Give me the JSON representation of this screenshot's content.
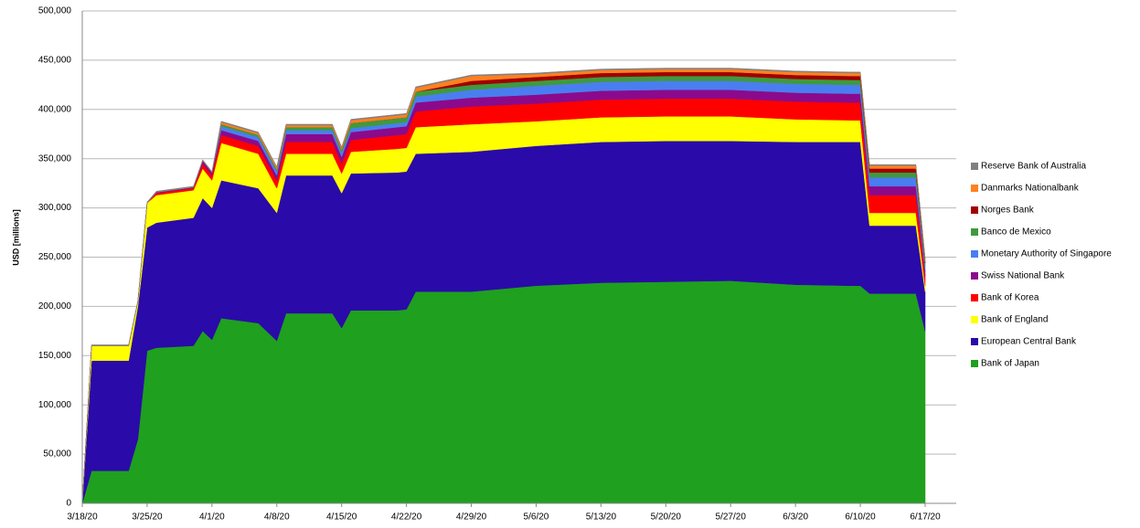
{
  "chart_data": {
    "type": "stacked-area",
    "y_label": "USD [millions]",
    "x": [
      "3/18/20",
      "3/19/20",
      "3/23/20",
      "3/24/20",
      "3/25/20",
      "3/26/20",
      "3/30/20",
      "3/31/20",
      "4/1/20",
      "4/2/20",
      "4/6/20",
      "4/8/20",
      "4/9/20",
      "4/14/20",
      "4/15/20",
      "4/16/20",
      "4/21/20",
      "4/22/20",
      "4/23/20",
      "4/29/20",
      "5/6/20",
      "5/13/20",
      "5/20/20",
      "5/27/20",
      "6/3/20",
      "6/9/20",
      "6/10/20",
      "6/11/20",
      "6/16/20",
      "6/17/20"
    ],
    "xlim": [
      "3/18/20",
      "6/17/20"
    ],
    "xticks": [
      "3/18/20",
      "3/25/20",
      "4/1/20",
      "4/8/20",
      "4/15/20",
      "4/22/20",
      "4/29/20",
      "5/6/20",
      "5/13/20",
      "5/20/20",
      "5/27/20",
      "6/3/20",
      "6/10/20",
      "6/17/20"
    ],
    "ylim": [
      0,
      500000
    ],
    "yticks": [
      0,
      {
        "value": 50000,
        "label": "50,000"
      },
      {
        "value": 100000,
        "label": "100,000"
      },
      {
        "value": 150000,
        "label": "150,000"
      },
      {
        "value": 200000,
        "label": "200,000"
      },
      {
        "value": 250000,
        "label": "250,000"
      },
      {
        "value": 300000,
        "label": "300,000"
      },
      {
        "value": 350000,
        "label": "350,000"
      },
      {
        "value": 400000,
        "label": "400,000"
      },
      {
        "value": 450000,
        "label": "450,000"
      },
      {
        "value": 500000,
        "label": "500,000"
      }
    ],
    "grid": true,
    "legend": "right",
    "series": [
      {
        "name": "Bank of Japan",
        "color": "#1fa01f",
        "values": [
          0,
          33000,
          33000,
          65000,
          155000,
          158000,
          160000,
          175000,
          166000,
          188000,
          183000,
          165000,
          193000,
          193000,
          178000,
          196000,
          196000,
          197000,
          215000,
          215000,
          221000,
          224000,
          225000,
          226000,
          222000,
          221000,
          221000,
          213000,
          213000,
          175000
        ]
      },
      {
        "name": "European Central Bank",
        "color": "#2a0aa8",
        "values": [
          0,
          112000,
          112000,
          135000,
          125000,
          127000,
          130000,
          135000,
          134000,
          140000,
          137000,
          130000,
          140000,
          140000,
          137000,
          139000,
          140000,
          140000,
          140000,
          142000,
          142000,
          143000,
          143000,
          142000,
          145000,
          146000,
          146000,
          69000,
          69000,
          40000
        ]
      },
      {
        "name": "Bank of England",
        "color": "#ffff00",
        "values": [
          0,
          15000,
          15000,
          5000,
          25000,
          28000,
          28000,
          30000,
          28000,
          38000,
          35000,
          25000,
          22000,
          22000,
          20000,
          22000,
          24000,
          24000,
          27000,
          28000,
          25000,
          25000,
          25000,
          25000,
          23000,
          22000,
          22000,
          13000,
          13000,
          6000
        ]
      },
      {
        "name": "Bank of Korea",
        "color": "#ff0000",
        "values": [
          0,
          0,
          0,
          0,
          0,
          2000,
          2000,
          5000,
          5000,
          8000,
          8000,
          8000,
          12000,
          12000,
          10000,
          12000,
          14000,
          14000,
          16000,
          18000,
          18000,
          18000,
          18000,
          18000,
          18000,
          18000,
          18000,
          18000,
          18000,
          10000
        ]
      },
      {
        "name": "Swiss National Bank",
        "color": "#8b0a8b",
        "values": [
          0,
          0,
          0,
          0,
          0,
          1000,
          1000,
          3000,
          3000,
          5000,
          5000,
          5000,
          8000,
          8000,
          7000,
          8000,
          8000,
          8000,
          9000,
          9000,
          9000,
          9000,
          9000,
          9000,
          9000,
          9000,
          9000,
          9000,
          9000,
          5000
        ]
      },
      {
        "name": "Monetary Authority of Singapore",
        "color": "#4a7ef0",
        "values": [
          0,
          0,
          0,
          0,
          0,
          0,
          0,
          0,
          0,
          4000,
          4000,
          4000,
          4000,
          4000,
          4000,
          4000,
          4000,
          4000,
          6000,
          8000,
          9000,
          9000,
          9000,
          9000,
          9000,
          9000,
          9000,
          9000,
          9000,
          5000
        ]
      },
      {
        "name": "Banco de Mexico",
        "color": "#3f9a3f",
        "values": [
          0,
          0,
          0,
          0,
          0,
          0,
          0,
          0,
          0,
          2000,
          2000,
          2000,
          3000,
          3000,
          3000,
          5000,
          5000,
          5000,
          5000,
          5000,
          5000,
          5000,
          5000,
          5000,
          5000,
          5000,
          5000,
          5000,
          5000,
          3000
        ]
      },
      {
        "name": "Norges Bank",
        "color": "#a00000",
        "values": [
          0,
          0,
          0,
          0,
          0,
          0,
          0,
          0,
          0,
          0,
          0,
          0,
          0,
          0,
          0,
          0,
          0,
          0,
          0,
          4000,
          4000,
          4000,
          4000,
          4000,
          4000,
          4000,
          4000,
          4000,
          4000,
          2000
        ]
      },
      {
        "name": "Danmarks Nationalbank",
        "color": "#ff8020",
        "values": [
          0,
          0,
          0,
          0,
          0,
          0,
          0,
          0,
          0,
          2000,
          2000,
          2000,
          2000,
          2000,
          2000,
          3000,
          3000,
          3000,
          4000,
          5000,
          3000,
          3000,
          3000,
          3000,
          3000,
          3000,
          3000,
          3000,
          3000,
          2000
        ]
      },
      {
        "name": "Reserve Bank of Australia",
        "color": "#808080",
        "values": [
          0,
          1000,
          1000,
          1000,
          1000,
          1000,
          1000,
          1000,
          1000,
          1000,
          1000,
          1000,
          1000,
          1000,
          1000,
          1000,
          1000,
          1000,
          1000,
          1000,
          1000,
          1000,
          1000,
          1000,
          1000,
          1000,
          1000,
          1000,
          1000,
          1000
        ]
      }
    ]
  }
}
